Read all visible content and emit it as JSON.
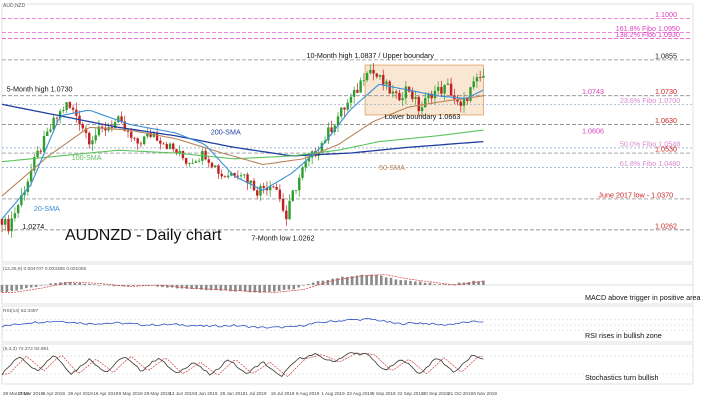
{
  "symbol": "AUDNZD",
  "chart_title": "AUDNZD - Daily chart",
  "panel_header": "AUD,NZD",
  "colors": {
    "bull": "#2e9e2e",
    "bear": "#c22020",
    "sma20": "#3a8fd8",
    "sma50": "#b8865a",
    "sma100": "#5cc45c",
    "sma200": "#1f3fa0",
    "fibo": "#e040c0",
    "resistance": "#cc2222",
    "channel": "#f6dcc0"
  },
  "chart_data": [
    {
      "type": "candlestick",
      "title": "AUDNZD - Daily chart",
      "ylim": [
        1.015,
        1.105
      ],
      "x_dates": [
        "29 Mar 2019",
        "17 Mar 2019",
        "8 Apr 2019",
        "29 Apr 2019",
        "16 Apr 2019",
        "9 May 2019",
        "28 May 2019",
        "13 Jun 2019",
        "3 Jun 2019",
        "28 Jun 2019",
        "1 Jul 2019",
        "19 Jul 2019",
        "9 Aug 2019",
        "1 Aug 2019",
        "23 Aug 2019",
        "5 Sep 2019",
        "22 Sep 2019",
        "30 Sep 2019",
        "21 Oct 2019",
        "6 Nov 2019"
      ],
      "levels": [
        {
          "label": "1.1000",
          "value": 1.1,
          "style": "fibo"
        },
        {
          "label": "161.8% Fibo 1.0950",
          "value": 1.095,
          "style": "fibo"
        },
        {
          "label": "138.2% Fibo 1.0930",
          "value": 1.093,
          "style": "fibo"
        },
        {
          "label": "1.0855",
          "value": 1.0855,
          "style": "plain"
        },
        {
          "label": "1.0730",
          "value": 1.073,
          "style": "resistance"
        },
        {
          "label": "23.6% Fibo 1.0700",
          "value": 1.07,
          "style": "fibo-light"
        },
        {
          "label": "1.0630",
          "value": 1.063,
          "style": "resistance"
        },
        {
          "label": "50.0% Fibo 1.0548",
          "value": 1.0548,
          "style": "fibo-light"
        },
        {
          "label": "1.0530",
          "value": 1.053,
          "style": "resistance"
        },
        {
          "label": "61.8% Fibo 1.0480",
          "value": 1.048,
          "style": "fibo-light"
        },
        {
          "label": "June 2017 low - 1.0370",
          "value": 1.037,
          "style": "resistance"
        },
        {
          "label": "1.0262",
          "value": 1.0262,
          "style": "resistance"
        }
      ],
      "annotations": [
        {
          "text": "10-Month high 1.0837 / Upper boundary",
          "x": 0.525,
          "y": 1.0862
        },
        {
          "text": "5-Month high 1.0730",
          "x": 0.008,
          "y": 1.0745
        },
        {
          "text": "Lower boundary 1.0663",
          "x": 0.66,
          "y": 1.0648
        },
        {
          "text": "7-Month low 1.0262",
          "x": 0.43,
          "y": 1.0225
        },
        {
          "text": "1.0274",
          "x": 0.035,
          "y": 1.0265
        }
      ],
      "ma_labels": [
        {
          "text": "1.0743",
          "value": 1.0743
        },
        {
          "text": "1.0606",
          "value": 1.0606
        },
        {
          "text": "200-SMA",
          "x": 0.36,
          "y": 1.0602
        },
        {
          "text": "100-SMA",
          "x": 0.12,
          "y": 1.0512
        },
        {
          "text": "50-SMA",
          "x": 0.65,
          "y": 1.0478
        },
        {
          "text": "20-SMA",
          "x": 0.055,
          "y": 1.0335
        }
      ],
      "box": {
        "x0": 0.626,
        "x1": 0.83,
        "top": 1.0837,
        "bottom": 1.0663
      },
      "ma_anchors": {
        "sma20": [
          [
            0,
            1.03
          ],
          [
            0.05,
            1.042
          ],
          [
            0.1,
            1.066
          ],
          [
            0.15,
            1.068
          ],
          [
            0.22,
            1.063
          ],
          [
            0.3,
            1.06
          ],
          [
            0.35,
            1.056
          ],
          [
            0.4,
            1.045
          ],
          [
            0.45,
            1.04
          ],
          [
            0.5,
            1.046
          ],
          [
            0.55,
            1.055
          ],
          [
            0.6,
            1.068
          ],
          [
            0.65,
            1.077
          ],
          [
            0.7,
            1.075
          ],
          [
            0.75,
            1.073
          ],
          [
            0.8,
            1.072
          ],
          [
            0.83,
            1.075
          ]
        ],
        "sma50": [
          [
            0,
            1.038
          ],
          [
            0.08,
            1.052
          ],
          [
            0.15,
            1.062
          ],
          [
            0.22,
            1.061
          ],
          [
            0.3,
            1.058
          ],
          [
            0.38,
            1.053
          ],
          [
            0.45,
            1.049
          ],
          [
            0.52,
            1.051
          ],
          [
            0.58,
            1.056
          ],
          [
            0.64,
            1.064
          ],
          [
            0.7,
            1.069
          ],
          [
            0.76,
            1.071
          ],
          [
            0.83,
            1.073
          ]
        ],
        "sma100": [
          [
            0,
            1.05
          ],
          [
            0.1,
            1.052
          ],
          [
            0.2,
            1.054
          ],
          [
            0.3,
            1.053
          ],
          [
            0.4,
            1.051
          ],
          [
            0.5,
            1.052
          ],
          [
            0.58,
            1.054
          ],
          [
            0.65,
            1.057
          ],
          [
            0.75,
            1.059
          ],
          [
            0.83,
            1.061
          ]
        ],
        "sma200": [
          [
            0,
            1.07
          ],
          [
            0.1,
            1.066
          ],
          [
            0.2,
            1.062
          ],
          [
            0.3,
            1.059
          ],
          [
            0.4,
            1.055
          ],
          [
            0.5,
            1.052
          ],
          [
            0.6,
            1.053
          ],
          [
            0.7,
            1.055
          ],
          [
            0.83,
            1.057
          ]
        ]
      },
      "close_anchors": [
        [
          0,
          1.03
        ],
        [
          0.01,
          1.027
        ],
        [
          0.03,
          1.036
        ],
        [
          0.06,
          1.052
        ],
        [
          0.09,
          1.064
        ],
        [
          0.11,
          1.07
        ],
        [
          0.13,
          1.066
        ],
        [
          0.15,
          1.058
        ],
        [
          0.18,
          1.062
        ],
        [
          0.2,
          1.064
        ],
        [
          0.23,
          1.056
        ],
        [
          0.26,
          1.06
        ],
        [
          0.29,
          1.055
        ],
        [
          0.32,
          1.05
        ],
        [
          0.35,
          1.053
        ],
        [
          0.38,
          1.045
        ],
        [
          0.41,
          1.047
        ],
        [
          0.44,
          1.04
        ],
        [
          0.47,
          1.043
        ],
        [
          0.49,
          1.03
        ],
        [
          0.5,
          1.038
        ],
        [
          0.52,
          1.048
        ],
        [
          0.55,
          1.056
        ],
        [
          0.58,
          1.066
        ],
        [
          0.61,
          1.074
        ],
        [
          0.63,
          1.083
        ],
        [
          0.65,
          1.079
        ],
        [
          0.68,
          1.072
        ],
        [
          0.7,
          1.076
        ],
        [
          0.72,
          1.068
        ],
        [
          0.74,
          1.074
        ],
        [
          0.77,
          1.076
        ],
        [
          0.79,
          1.068
        ],
        [
          0.81,
          1.076
        ],
        [
          0.83,
          1.08
        ]
      ]
    },
    {
      "type": "histogram",
      "title": "MACD(12,26,9)",
      "header": "(12,26,9) 0.004707 0.003386 0.001055",
      "annotation": "MACD above trigger in positive area",
      "ylim": [
        -1,
        1
      ],
      "anchors": [
        [
          0,
          -0.5
        ],
        [
          0.05,
          -0.2
        ],
        [
          0.1,
          0.2
        ],
        [
          0.15,
          0.1
        ],
        [
          0.2,
          -0.1
        ],
        [
          0.25,
          0.0
        ],
        [
          0.3,
          -0.2
        ],
        [
          0.35,
          -0.3
        ],
        [
          0.4,
          -0.4
        ],
        [
          0.45,
          -0.5
        ],
        [
          0.5,
          -0.3
        ],
        [
          0.55,
          0.3
        ],
        [
          0.6,
          0.6
        ],
        [
          0.64,
          0.7
        ],
        [
          0.68,
          0.4
        ],
        [
          0.72,
          0.2
        ],
        [
          0.76,
          0.0
        ],
        [
          0.8,
          0.2
        ],
        [
          0.83,
          0.3
        ]
      ]
    },
    {
      "type": "line",
      "title": "RSI(14)",
      "header": "RSI(14) 62.3497",
      "annotation": "RSI rises in bullish zone",
      "ylim": [
        0,
        100
      ],
      "anchors": [
        [
          0,
          45
        ],
        [
          0.05,
          60
        ],
        [
          0.1,
          65
        ],
        [
          0.15,
          55
        ],
        [
          0.2,
          58
        ],
        [
          0.25,
          50
        ],
        [
          0.3,
          52
        ],
        [
          0.35,
          45
        ],
        [
          0.4,
          48
        ],
        [
          0.45,
          40
        ],
        [
          0.5,
          42
        ],
        [
          0.55,
          60
        ],
        [
          0.6,
          70
        ],
        [
          0.64,
          72
        ],
        [
          0.68,
          55
        ],
        [
          0.72,
          58
        ],
        [
          0.76,
          50
        ],
        [
          0.8,
          60
        ],
        [
          0.83,
          64
        ]
      ]
    },
    {
      "type": "line",
      "title": "Stochastics",
      "header": "(5,3,3) 72.272 82.881",
      "annotation": "Stochastics turn bullish",
      "ylim": [
        0,
        100
      ],
      "anchors": [
        [
          0,
          20
        ],
        [
          0.03,
          80
        ],
        [
          0.06,
          30
        ],
        [
          0.09,
          85
        ],
        [
          0.12,
          20
        ],
        [
          0.15,
          70
        ],
        [
          0.18,
          25
        ],
        [
          0.21,
          80
        ],
        [
          0.24,
          30
        ],
        [
          0.27,
          75
        ],
        [
          0.3,
          20
        ],
        [
          0.33,
          60
        ],
        [
          0.36,
          15
        ],
        [
          0.39,
          70
        ],
        [
          0.42,
          20
        ],
        [
          0.45,
          60
        ],
        [
          0.48,
          10
        ],
        [
          0.51,
          70
        ],
        [
          0.54,
          85
        ],
        [
          0.57,
          60
        ],
        [
          0.6,
          90
        ],
        [
          0.63,
          85
        ],
        [
          0.66,
          30
        ],
        [
          0.69,
          70
        ],
        [
          0.72,
          20
        ],
        [
          0.75,
          75
        ],
        [
          0.78,
          25
        ],
        [
          0.81,
          80
        ],
        [
          0.83,
          72
        ]
      ]
    }
  ]
}
